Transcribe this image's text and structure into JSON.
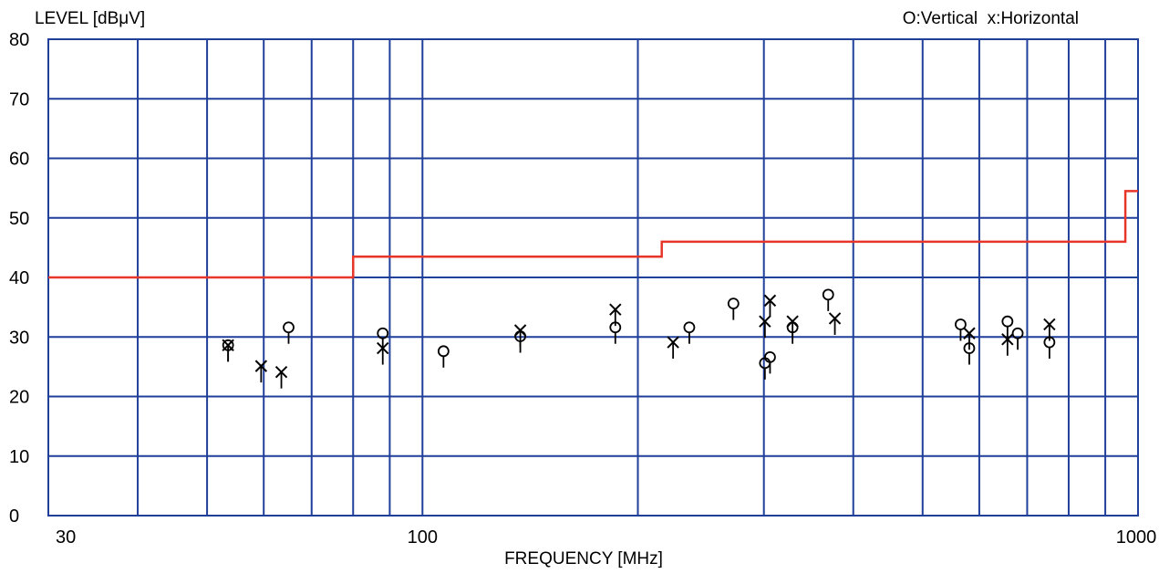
{
  "chart_data": {
    "type": "scatter",
    "title": "",
    "ylabel": "LEVEL [dBμV]",
    "xlabel": "FREQUENCY [MHz]",
    "legend_text": "O:Vertical  x:Horizontal",
    "x_scale": "log",
    "xlim": [
      30,
      1000
    ],
    "ylim": [
      0,
      80
    ],
    "x_tick_labels": [
      "30",
      "100",
      "1000"
    ],
    "y_tick_labels": [
      "0",
      "10",
      "20",
      "30",
      "40",
      "50",
      "60",
      "70",
      "80"
    ],
    "x_gridlines": [
      40,
      50,
      60,
      70,
      80,
      90,
      100,
      200,
      300,
      400,
      500,
      600,
      700,
      800,
      900,
      1000
    ],
    "y_gridlines": [
      10,
      20,
      30,
      40,
      50,
      60,
      70,
      80
    ],
    "grid": true,
    "legend_position": "top-right",
    "colors": {
      "limit_line": "#e8352a",
      "grid": "#1f3f9a",
      "markers": "#000000"
    },
    "limit_line": [
      [
        30,
        40
      ],
      [
        80,
        40
      ],
      [
        80,
        43.5
      ],
      [
        216,
        43.5
      ],
      [
        216,
        46
      ],
      [
        960,
        46
      ],
      [
        960,
        54.5
      ],
      [
        1000,
        54.5
      ]
    ],
    "series": [
      {
        "name": "Vertical",
        "marker": "circle",
        "points": [
          [
            53.5,
            28
          ],
          [
            65,
            31
          ],
          [
            88,
            30
          ],
          [
            107,
            27
          ],
          [
            137,
            29.5
          ],
          [
            186,
            31
          ],
          [
            236,
            31
          ],
          [
            272,
            35
          ],
          [
            301,
            25
          ],
          [
            306,
            26
          ],
          [
            329,
            31
          ],
          [
            369,
            36.5
          ],
          [
            565,
            31.5
          ],
          [
            581,
            27.5
          ],
          [
            657,
            32
          ],
          [
            679,
            30
          ],
          [
            752,
            28.5
          ]
        ]
      },
      {
        "name": "Horizontal",
        "marker": "cross",
        "points": [
          [
            53.5,
            28
          ],
          [
            59.5,
            24.5
          ],
          [
            63.5,
            23.5
          ],
          [
            88,
            27.5
          ],
          [
            137,
            30.5
          ],
          [
            186,
            34
          ],
          [
            224,
            28.5
          ],
          [
            301,
            32
          ],
          [
            306,
            35.5
          ],
          [
            329,
            32
          ],
          [
            377,
            32.5
          ],
          [
            581,
            30
          ],
          [
            657,
            29
          ],
          [
            752,
            31.5
          ]
        ]
      }
    ]
  }
}
